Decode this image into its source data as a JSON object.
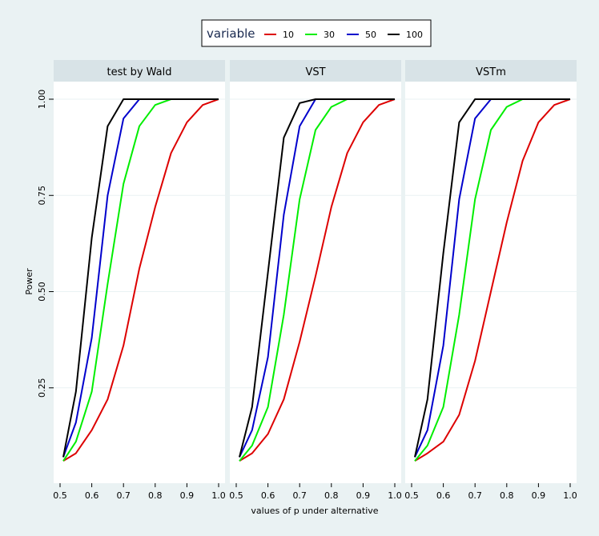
{
  "chart_data": {
    "type": "line",
    "legend": {
      "title": "variable",
      "placement": "top-center",
      "entries": [
        {
          "label": "10",
          "color": "#dd0000"
        },
        {
          "label": "30",
          "color": "#00ee00"
        },
        {
          "label": "50",
          "color": "#0000cc"
        },
        {
          "label": "100",
          "color": "#000000"
        }
      ]
    },
    "ylabel": "Power",
    "xlabel": "values of p under alternative",
    "xlim": [
      0.5,
      1.0
    ],
    "ylim": [
      0.05,
      1.0
    ],
    "yticks": [
      0.25,
      0.5,
      0.75,
      1.0
    ],
    "ytick_labels": [
      "0.25",
      "0.50",
      "0.75",
      "1.00"
    ],
    "xticks": [
      0.5,
      0.6,
      0.7,
      0.8,
      0.9,
      1.0
    ],
    "xtick_labels": [
      "0.5",
      "0.6",
      "0.7",
      "0.8",
      "0.9",
      "1.0"
    ],
    "panels": [
      {
        "title": "test by Wald",
        "series": [
          {
            "name": "10",
            "points": [
              [
                0.51,
                0.06
              ],
              [
                0.55,
                0.08
              ],
              [
                0.6,
                0.14
              ],
              [
                0.65,
                0.22
              ],
              [
                0.7,
                0.36
              ],
              [
                0.75,
                0.56
              ],
              [
                0.8,
                0.72
              ],
              [
                0.85,
                0.86
              ],
              [
                0.9,
                0.94
              ],
              [
                0.95,
                0.985
              ],
              [
                1.0,
                1.0
              ]
            ]
          },
          {
            "name": "30",
            "points": [
              [
                0.51,
                0.06
              ],
              [
                0.55,
                0.11
              ],
              [
                0.6,
                0.24
              ],
              [
                0.65,
                0.52
              ],
              [
                0.7,
                0.78
              ],
              [
                0.75,
                0.93
              ],
              [
                0.8,
                0.985
              ],
              [
                0.85,
                1.0
              ],
              [
                1.0,
                1.0
              ]
            ]
          },
          {
            "name": "50",
            "points": [
              [
                0.51,
                0.07
              ],
              [
                0.55,
                0.16
              ],
              [
                0.6,
                0.38
              ],
              [
                0.65,
                0.75
              ],
              [
                0.7,
                0.95
              ],
              [
                0.75,
                1.0
              ],
              [
                1.0,
                1.0
              ]
            ]
          },
          {
            "name": "100",
            "points": [
              [
                0.51,
                0.07
              ],
              [
                0.55,
                0.24
              ],
              [
                0.6,
                0.64
              ],
              [
                0.65,
                0.93
              ],
              [
                0.7,
                1.0
              ],
              [
                1.0,
                1.0
              ]
            ]
          }
        ]
      },
      {
        "title": "VST",
        "series": [
          {
            "name": "10",
            "points": [
              [
                0.51,
                0.06
              ],
              [
                0.55,
                0.08
              ],
              [
                0.6,
                0.13
              ],
              [
                0.65,
                0.22
              ],
              [
                0.7,
                0.37
              ],
              [
                0.75,
                0.54
              ],
              [
                0.8,
                0.72
              ],
              [
                0.85,
                0.86
              ],
              [
                0.9,
                0.94
              ],
              [
                0.95,
                0.985
              ],
              [
                1.0,
                1.0
              ]
            ]
          },
          {
            "name": "30",
            "points": [
              [
                0.51,
                0.06
              ],
              [
                0.55,
                0.1
              ],
              [
                0.6,
                0.2
              ],
              [
                0.65,
                0.44
              ],
              [
                0.7,
                0.74
              ],
              [
                0.75,
                0.92
              ],
              [
                0.8,
                0.98
              ],
              [
                0.85,
                1.0
              ],
              [
                1.0,
                1.0
              ]
            ]
          },
          {
            "name": "50",
            "points": [
              [
                0.51,
                0.07
              ],
              [
                0.55,
                0.14
              ],
              [
                0.6,
                0.33
              ],
              [
                0.65,
                0.7
              ],
              [
                0.7,
                0.93
              ],
              [
                0.75,
                1.0
              ],
              [
                1.0,
                1.0
              ]
            ]
          },
          {
            "name": "100",
            "points": [
              [
                0.51,
                0.07
              ],
              [
                0.55,
                0.2
              ],
              [
                0.6,
                0.55
              ],
              [
                0.65,
                0.9
              ],
              [
                0.7,
                0.99
              ],
              [
                0.75,
                1.0
              ],
              [
                1.0,
                1.0
              ]
            ]
          }
        ]
      },
      {
        "title": "VSTm",
        "series": [
          {
            "name": "10",
            "points": [
              [
                0.51,
                0.06
              ],
              [
                0.55,
                0.08
              ],
              [
                0.6,
                0.11
              ],
              [
                0.65,
                0.18
              ],
              [
                0.7,
                0.32
              ],
              [
                0.75,
                0.5
              ],
              [
                0.8,
                0.68
              ],
              [
                0.85,
                0.84
              ],
              [
                0.9,
                0.94
              ],
              [
                0.95,
                0.985
              ],
              [
                1.0,
                1.0
              ]
            ]
          },
          {
            "name": "30",
            "points": [
              [
                0.51,
                0.06
              ],
              [
                0.55,
                0.1
              ],
              [
                0.6,
                0.2
              ],
              [
                0.65,
                0.44
              ],
              [
                0.7,
                0.74
              ],
              [
                0.75,
                0.92
              ],
              [
                0.8,
                0.98
              ],
              [
                0.85,
                1.0
              ],
              [
                1.0,
                1.0
              ]
            ]
          },
          {
            "name": "50",
            "points": [
              [
                0.51,
                0.07
              ],
              [
                0.55,
                0.14
              ],
              [
                0.6,
                0.36
              ],
              [
                0.65,
                0.74
              ],
              [
                0.7,
                0.95
              ],
              [
                0.75,
                1.0
              ],
              [
                1.0,
                1.0
              ]
            ]
          },
          {
            "name": "100",
            "points": [
              [
                0.51,
                0.07
              ],
              [
                0.55,
                0.22
              ],
              [
                0.6,
                0.6
              ],
              [
                0.65,
                0.94
              ],
              [
                0.7,
                1.0
              ],
              [
                1.0,
                1.0
              ]
            ]
          }
        ]
      }
    ]
  }
}
